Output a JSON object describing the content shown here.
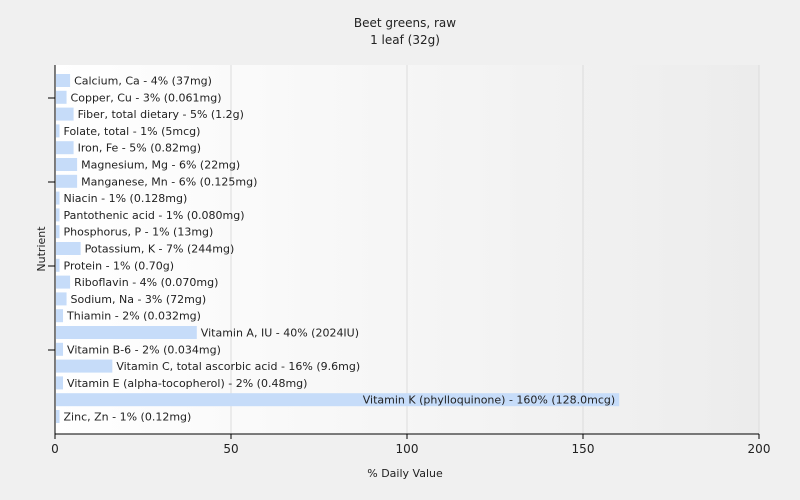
{
  "chart_data": {
    "type": "bar",
    "orientation": "horizontal",
    "title": "Beet greens, raw",
    "subtitle": "1 leaf (32g)",
    "xlabel": "% Daily Value",
    "ylabel": "Nutrient",
    "xlim": [
      0,
      200
    ],
    "xticks": [
      "0",
      "50",
      "100",
      "150",
      "200"
    ],
    "grid": true,
    "bar_color": "#c6dcf9",
    "categories": [
      "Calcium, Ca",
      "Copper, Cu",
      "Fiber, total dietary",
      "Folate, total",
      "Iron, Fe",
      "Magnesium, Mg",
      "Manganese, Mn",
      "Niacin",
      "Pantothenic acid",
      "Phosphorus, P",
      "Potassium, K",
      "Protein",
      "Riboflavin",
      "Sodium, Na",
      "Thiamin",
      "Vitamin A, IU",
      "Vitamin B-6",
      "Vitamin C, total ascorbic acid",
      "Vitamin E (alpha-tocopherol)",
      "Vitamin K (phylloquinone)",
      "Zinc, Zn"
    ],
    "values": [
      4,
      3,
      5,
      1,
      5,
      6,
      6,
      1,
      1,
      1,
      7,
      1,
      4,
      3,
      2,
      40,
      2,
      16,
      2,
      160,
      1
    ],
    "labels": [
      "Calcium, Ca - 4% (37mg)",
      "Copper, Cu - 3% (0.061mg)",
      "Fiber, total dietary - 5% (1.2g)",
      "Folate, total - 1% (5mcg)",
      "Iron, Fe - 5% (0.82mg)",
      "Magnesium, Mg - 6% (22mg)",
      "Manganese, Mn - 6% (0.125mg)",
      "Niacin - 1% (0.128mg)",
      "Pantothenic acid - 1% (0.080mg)",
      "Phosphorus, P - 1% (13mg)",
      "Potassium, K - 7% (244mg)",
      "Protein - 1% (0.70g)",
      "Riboflavin - 4% (0.070mg)",
      "Sodium, Na - 3% (72mg)",
      "Thiamin - 2% (0.032mg)",
      "Vitamin A, IU - 40% (2024IU)",
      "Vitamin B-6 - 2% (0.034mg)",
      "Vitamin C, total ascorbic acid - 16% (9.6mg)",
      "Vitamin E (alpha-tocopherol) - 2% (0.48mg)",
      "Vitamin K (phylloquinone) - 160% (128.0mcg)",
      "Zinc, Zn - 1% (0.12mg)"
    ]
  }
}
